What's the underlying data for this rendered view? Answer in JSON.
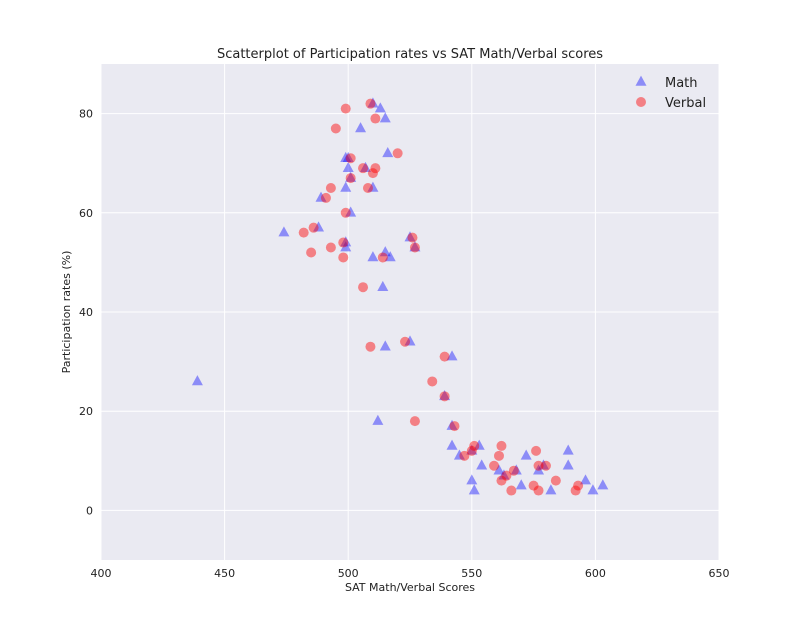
{
  "chart_data": {
    "type": "scatter",
    "title": "Scatterplot of Participation rates vs SAT Math/Verbal scores",
    "xlabel": "SAT Math/Verbal Scores",
    "ylabel": "Participation rates (%)",
    "xlim": [
      400,
      650
    ],
    "ylim": [
      -10,
      90
    ],
    "xticks": [
      400,
      450,
      500,
      550,
      600,
      650
    ],
    "yticks": [
      0,
      20,
      40,
      60,
      80
    ],
    "grid": true,
    "legend_position": "top-right",
    "series": [
      {
        "name": "Math",
        "marker": "triangle",
        "color": "#0000ff",
        "points": [
          [
            439,
            26
          ],
          [
            474,
            56
          ],
          [
            488,
            57
          ],
          [
            489,
            63
          ],
          [
            499,
            71
          ],
          [
            500,
            71
          ],
          [
            499,
            65
          ],
          [
            500,
            69
          ],
          [
            501,
            67
          ],
          [
            499,
            54
          ],
          [
            499,
            53
          ],
          [
            501,
            60
          ],
          [
            505,
            77
          ],
          [
            507,
            69
          ],
          [
            510,
            82
          ],
          [
            513,
            81
          ],
          [
            515,
            79
          ],
          [
            516,
            72
          ],
          [
            510,
            65
          ],
          [
            510,
            51
          ],
          [
            515,
            52
          ],
          [
            517,
            51
          ],
          [
            514,
            45
          ],
          [
            515,
            33
          ],
          [
            512,
            18
          ],
          [
            525,
            34
          ],
          [
            525,
            55
          ],
          [
            527,
            53
          ],
          [
            539,
            23
          ],
          [
            542,
            31
          ],
          [
            542,
            17
          ],
          [
            542,
            13
          ],
          [
            545,
            11
          ],
          [
            550,
            12
          ],
          [
            553,
            13
          ],
          [
            554,
            9
          ],
          [
            550,
            6
          ],
          [
            551,
            4
          ],
          [
            561,
            8
          ],
          [
            563,
            7
          ],
          [
            568,
            8
          ],
          [
            570,
            5
          ],
          [
            572,
            11
          ],
          [
            577,
            8
          ],
          [
            579,
            9
          ],
          [
            582,
            4
          ],
          [
            589,
            12
          ],
          [
            589,
            9
          ],
          [
            596,
            6
          ],
          [
            599,
            4
          ],
          [
            603,
            5
          ]
        ]
      },
      {
        "name": "Verbal",
        "marker": "circle",
        "color": "#ff0000",
        "points": [
          [
            482,
            56
          ],
          [
            485,
            52
          ],
          [
            486,
            57
          ],
          [
            491,
            63
          ],
          [
            493,
            65
          ],
          [
            493,
            53
          ],
          [
            495,
            77
          ],
          [
            498,
            54
          ],
          [
            498,
            51
          ],
          [
            499,
            81
          ],
          [
            499,
            60
          ],
          [
            501,
            71
          ],
          [
            501,
            67
          ],
          [
            506,
            69
          ],
          [
            506,
            45
          ],
          [
            508,
            65
          ],
          [
            509,
            82
          ],
          [
            509,
            33
          ],
          [
            510,
            68
          ],
          [
            511,
            69
          ],
          [
            511,
            79
          ],
          [
            514,
            51
          ],
          [
            520,
            72
          ],
          [
            523,
            34
          ],
          [
            526,
            55
          ],
          [
            527,
            53
          ],
          [
            527,
            18
          ],
          [
            534,
            26
          ],
          [
            539,
            31
          ],
          [
            539,
            23
          ],
          [
            543,
            17
          ],
          [
            547,
            11
          ],
          [
            550,
            12
          ],
          [
            551,
            13
          ],
          [
            559,
            9
          ],
          [
            561,
            11
          ],
          [
            562,
            13
          ],
          [
            562,
            6
          ],
          [
            564,
            7
          ],
          [
            566,
            4
          ],
          [
            567,
            8
          ],
          [
            575,
            5
          ],
          [
            576,
            12
          ],
          [
            577,
            9
          ],
          [
            577,
            4
          ],
          [
            580,
            9
          ],
          [
            584,
            6
          ],
          [
            592,
            4
          ],
          [
            593,
            5
          ]
        ]
      }
    ]
  }
}
